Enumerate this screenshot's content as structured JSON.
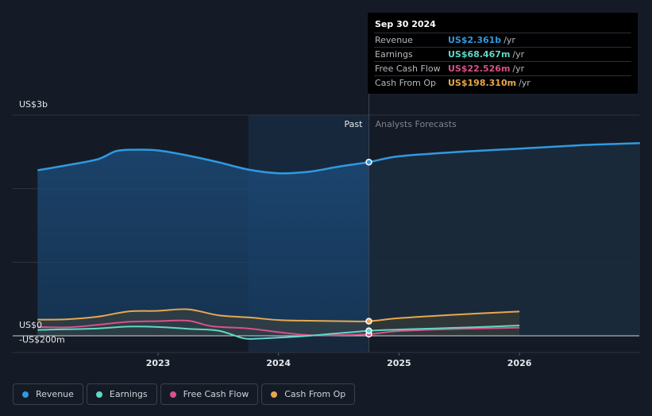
{
  "tooltip": {
    "date": "Sep 30 2024",
    "rows": [
      {
        "label": "Revenue",
        "value": "US$2.361b",
        "unit": "/yr",
        "color": "#2f9ae0"
      },
      {
        "label": "Earnings",
        "value": "US$68.467m",
        "unit": "/yr",
        "color": "#5ed8c8"
      },
      {
        "label": "Free Cash Flow",
        "value": "US$22.526m",
        "unit": "/yr",
        "color": "#d9508a"
      },
      {
        "label": "Cash From Op",
        "value": "US$198.310m",
        "unit": "/yr",
        "color": "#e8a84f"
      }
    ]
  },
  "legend": {
    "items": [
      {
        "label": "Revenue",
        "color": "#2f9ae0"
      },
      {
        "label": "Earnings",
        "color": "#5ed8c8"
      },
      {
        "label": "Free Cash Flow",
        "color": "#d9508a"
      },
      {
        "label": "Cash From Op",
        "color": "#e8a84f"
      }
    ]
  },
  "chart_data": {
    "type": "line",
    "y_tick_labels": [
      "US$3b",
      "US$0",
      "-US$200m"
    ],
    "x_tick_labels": [
      "2023",
      "2024",
      "2025",
      "2026"
    ],
    "divider_labels": {
      "past": "Past",
      "forecast": "Analysts Forecasts"
    },
    "ylim": [
      -200,
      3000
    ],
    "y_unit": "US$m",
    "grid": true,
    "legend_position": "bottom-left",
    "past_divider_x": 2024.75,
    "series": [
      {
        "name": "Revenue",
        "color": "#2f9ae0",
        "points": [
          [
            2022.0,
            2250
          ],
          [
            2022.25,
            2320
          ],
          [
            2022.5,
            2400
          ],
          [
            2022.65,
            2510
          ],
          [
            2022.8,
            2530
          ],
          [
            2023.0,
            2520
          ],
          [
            2023.25,
            2450
          ],
          [
            2023.5,
            2360
          ],
          [
            2023.75,
            2260
          ],
          [
            2024.0,
            2210
          ],
          [
            2024.25,
            2230
          ],
          [
            2024.5,
            2300
          ],
          [
            2024.75,
            2361
          ],
          [
            2025.0,
            2440
          ],
          [
            2025.5,
            2500
          ],
          [
            2026.0,
            2545
          ],
          [
            2026.5,
            2590
          ],
          [
            2027.0,
            2620
          ]
        ]
      },
      {
        "name": "Earnings",
        "color": "#5ed8c8",
        "points": [
          [
            2022.0,
            80
          ],
          [
            2022.25,
            90
          ],
          [
            2022.5,
            100
          ],
          [
            2022.75,
            125
          ],
          [
            2023.0,
            120
          ],
          [
            2023.25,
            95
          ],
          [
            2023.5,
            70
          ],
          [
            2023.7,
            -30
          ],
          [
            2023.8,
            -40
          ],
          [
            2024.0,
            -25
          ],
          [
            2024.25,
            0
          ],
          [
            2024.5,
            35
          ],
          [
            2024.75,
            68.467
          ],
          [
            2025.0,
            85
          ],
          [
            2025.5,
            110
          ],
          [
            2026.0,
            140
          ]
        ]
      },
      {
        "name": "Free Cash Flow",
        "color": "#d9508a",
        "points": [
          [
            2022.0,
            120
          ],
          [
            2022.25,
            115
          ],
          [
            2022.5,
            150
          ],
          [
            2022.75,
            190
          ],
          [
            2023.0,
            200
          ],
          [
            2023.25,
            205
          ],
          [
            2023.45,
            130
          ],
          [
            2023.75,
            100
          ],
          [
            2024.0,
            50
          ],
          [
            2024.25,
            10
          ],
          [
            2024.5,
            10
          ],
          [
            2024.75,
            22.526
          ],
          [
            2025.0,
            65
          ],
          [
            2025.5,
            95
          ],
          [
            2026.0,
            110
          ]
        ]
      },
      {
        "name": "Cash From Op",
        "color": "#e8a84f",
        "points": [
          [
            2022.0,
            220
          ],
          [
            2022.25,
            225
          ],
          [
            2022.5,
            260
          ],
          [
            2022.75,
            330
          ],
          [
            2023.0,
            340
          ],
          [
            2023.25,
            360
          ],
          [
            2023.5,
            280
          ],
          [
            2023.75,
            250
          ],
          [
            2024.0,
            215
          ],
          [
            2024.25,
            205
          ],
          [
            2024.5,
            200
          ],
          [
            2024.75,
            198.31
          ],
          [
            2025.0,
            240
          ],
          [
            2025.5,
            290
          ],
          [
            2026.0,
            330
          ]
        ]
      }
    ]
  }
}
